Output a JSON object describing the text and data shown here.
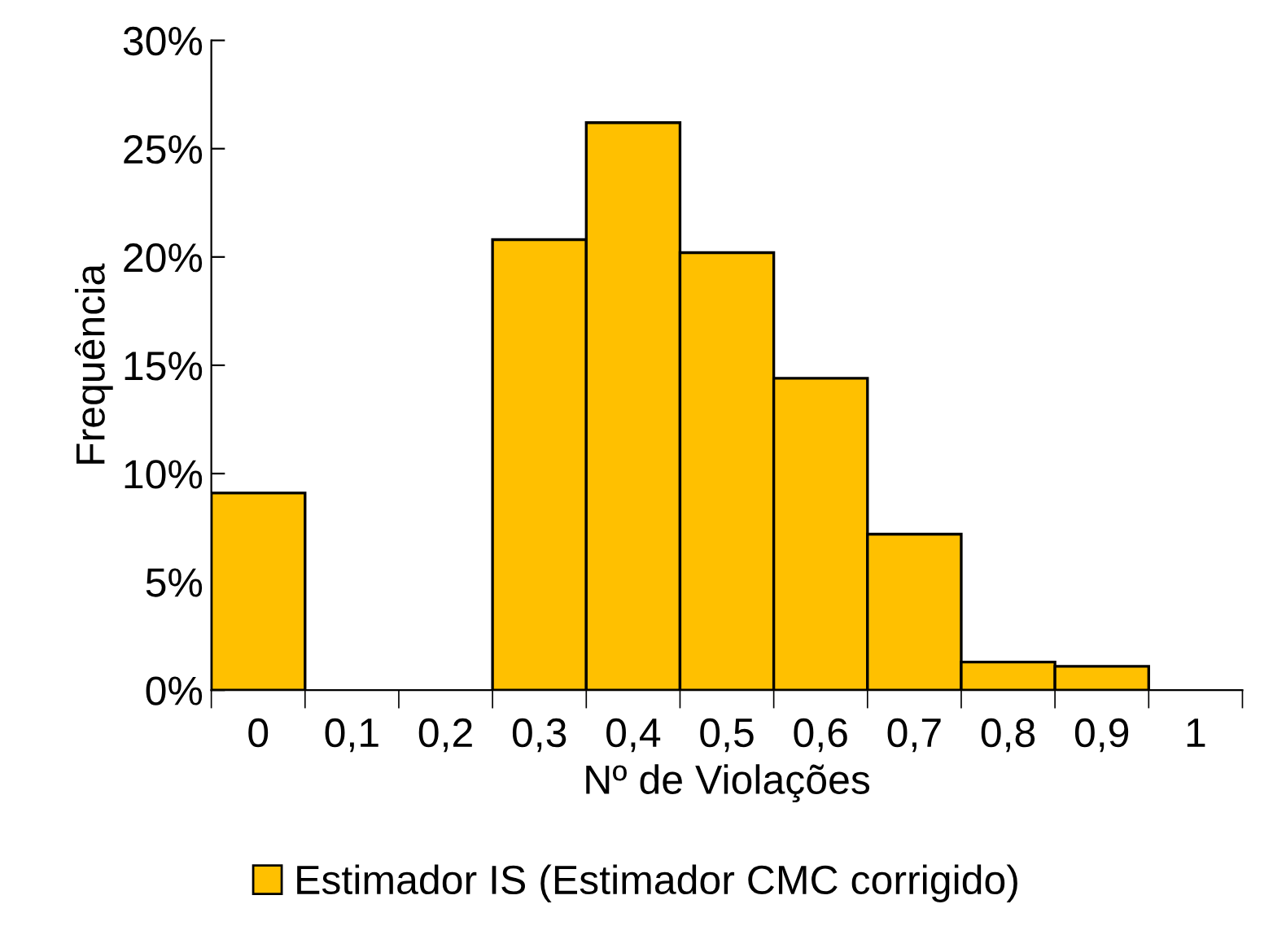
{
  "chart_data": {
    "type": "bar",
    "xlabel": "Nº de Violações",
    "ylabel": "Frequência",
    "categories": [
      "0",
      "0,1",
      "0,2",
      "0,3",
      "0,4",
      "0,5",
      "0,6",
      "0,7",
      "0,8",
      "0,9",
      "1"
    ],
    "series": [
      {
        "name": "Estimador IS (Estimador CMC corrigido)",
        "color": "#ffc000",
        "values": [
          9.1,
          null,
          null,
          20.8,
          26.2,
          20.2,
          14.4,
          7.2,
          1.3,
          1.1,
          null
        ]
      }
    ],
    "ylim": [
      0,
      30
    ],
    "yticks": [
      {
        "value": 0,
        "label": "0%"
      },
      {
        "value": 5,
        "label": "5%"
      },
      {
        "value": 10,
        "label": "10%"
      },
      {
        "value": 15,
        "label": "15%"
      },
      {
        "value": 20,
        "label": "20%"
      },
      {
        "value": 25,
        "label": "25%"
      },
      {
        "value": 30,
        "label": "30%"
      }
    ],
    "grid": false,
    "legend": "bottom"
  }
}
